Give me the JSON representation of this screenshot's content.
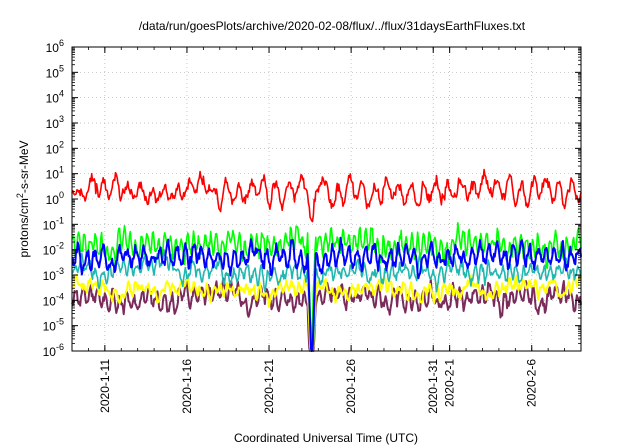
{
  "chart_data": {
    "type": "line",
    "title": "/data/run/goesPlots/archive/2020-02-08/flux/../flux/31daysEarthFluxes.txt",
    "xlabel": "Coordinated Universal Time (UTC)",
    "ylabel": "protons/cm2-s-sr-MeV",
    "ylabel_parts": {
      "a": "protons/cm",
      "sup": "2",
      "b": "-s-sr-MeV"
    },
    "yscale": "log",
    "ylim_exp": [
      -6,
      6
    ],
    "ytick_base": "10",
    "ytick_exponents": [
      -6,
      -5,
      -4,
      -3,
      -2,
      -1,
      0,
      1,
      2,
      3,
      4,
      5,
      6
    ],
    "xlim_days": [
      0,
      31
    ],
    "x_start_date": "2020-01-09",
    "xticks": [
      {
        "label": "2020-1-11",
        "day": 2
      },
      {
        "label": "2020-1-16",
        "day": 7
      },
      {
        "label": "2020-1-21",
        "day": 12
      },
      {
        "label": "2020-1-26",
        "day": 17
      },
      {
        "label": "2020-1-31",
        "day": 22
      },
      {
        "label": "2020-2-1",
        "day": 23
      },
      {
        "label": "2020-2-6",
        "day": 28
      }
    ],
    "grid": true,
    "dropout_day": 14.6,
    "series": [
      {
        "color": "#7a2b5c",
        "width": 2,
        "base_exp": -3.9,
        "amp": 0.35,
        "period": 0.45,
        "seed": 11
      },
      {
        "color": "#ffff00",
        "width": 2,
        "base_exp": -3.55,
        "amp": 0.2,
        "period": 0.4,
        "seed": 23
      },
      {
        "color": "#20b8b0",
        "width": 1.6,
        "base_exp": -2.85,
        "amp": 0.3,
        "period": 0.42,
        "seed": 5
      },
      {
        "color": "#00ff00",
        "width": 1.6,
        "base_exp": -1.75,
        "amp": 0.45,
        "period": 0.35,
        "seed": 7
      },
      {
        "color": "#0000ff",
        "width": 2,
        "base_exp": -2.3,
        "amp": 0.4,
        "period": 0.5,
        "seed": 3
      },
      {
        "color": "#ff0000",
        "width": 1.6,
        "base_exp": 0.35,
        "amp": 0.4,
        "period": 0.75,
        "seed": 17
      }
    ]
  }
}
